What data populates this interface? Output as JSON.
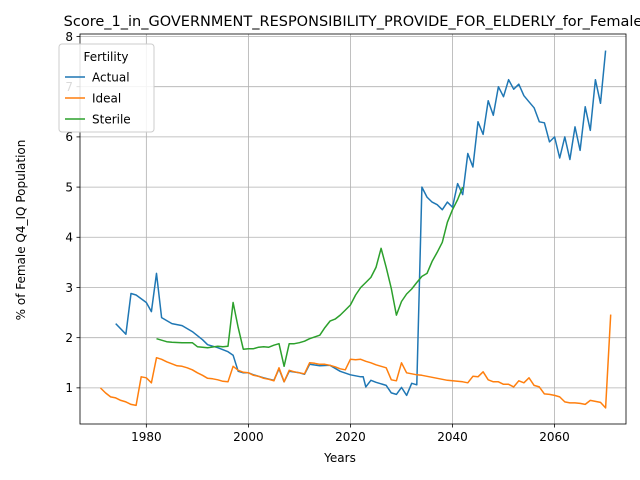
{
  "chart_data": {
    "type": "line",
    "title": "Score_1_in_GOVERNMENT_RESPONSIBILITY_PROVIDE_FOR_ELDERLY_for_Female",
    "xlabel": "Years",
    "ylabel": "% of Female Q4_IQ Population",
    "xlim": [
      1967,
      2074
    ],
    "ylim": [
      0.28,
      8.05
    ],
    "xticks": [
      1980,
      2000,
      2020,
      2040,
      2060
    ],
    "yticks": [
      1,
      2,
      3,
      4,
      5,
      6,
      7,
      8
    ],
    "grid": true,
    "legend": {
      "title": "Fertility",
      "placement": "upper left"
    },
    "series": [
      {
        "name": "Actual",
        "color": "#1f77b4",
        "points": [
          [
            1974,
            2.28
          ],
          [
            1976,
            2.07
          ],
          [
            1977,
            2.88
          ],
          [
            1978,
            2.85
          ],
          [
            1980,
            2.7
          ],
          [
            1981,
            2.52
          ],
          [
            1982,
            3.28
          ],
          [
            1983,
            2.4
          ],
          [
            1985,
            2.28
          ],
          [
            1987,
            2.24
          ],
          [
            1989,
            2.12
          ],
          [
            1991,
            1.96
          ],
          [
            1992,
            1.86
          ],
          [
            1994,
            1.8
          ],
          [
            1996,
            1.72
          ],
          [
            1997,
            1.65
          ],
          [
            1998,
            1.33
          ],
          [
            1999,
            1.3
          ],
          [
            2000,
            1.3
          ],
          [
            2001,
            1.26
          ],
          [
            2003,
            1.2
          ],
          [
            2005,
            1.15
          ],
          [
            2006,
            1.38
          ],
          [
            2007,
            1.12
          ],
          [
            2008,
            1.33
          ],
          [
            2010,
            1.3
          ],
          [
            2011,
            1.27
          ],
          [
            2012,
            1.47
          ],
          [
            2014,
            1.44
          ],
          [
            2016,
            1.45
          ],
          [
            2018,
            1.33
          ],
          [
            2020,
            1.26
          ],
          [
            2022,
            1.22
          ],
          [
            2022.5,
            1.22
          ],
          [
            2023,
            1.02
          ],
          [
            2024,
            1.15
          ],
          [
            2025,
            1.11
          ],
          [
            2027,
            1.05
          ],
          [
            2028,
            0.9
          ],
          [
            2029,
            0.87
          ],
          [
            2030,
            1.01
          ],
          [
            2031,
            0.85
          ],
          [
            2032,
            1.09
          ],
          [
            2033,
            1.06
          ],
          [
            2034,
            5.0
          ],
          [
            2035,
            4.8
          ],
          [
            2036,
            4.7
          ],
          [
            2037,
            4.65
          ],
          [
            2038,
            4.55
          ],
          [
            2039,
            4.7
          ],
          [
            2040,
            4.6
          ],
          [
            2041,
            5.07
          ],
          [
            2042,
            4.85
          ],
          [
            2043,
            5.67
          ],
          [
            2044,
            5.4
          ],
          [
            2045,
            6.3
          ],
          [
            2046,
            6.05
          ],
          [
            2047,
            6.72
          ],
          [
            2048,
            6.43
          ],
          [
            2049,
            7.0
          ],
          [
            2050,
            6.8
          ],
          [
            2051,
            7.14
          ],
          [
            2052,
            6.95
          ],
          [
            2053,
            7.05
          ],
          [
            2054,
            6.82
          ],
          [
            2055,
            6.7
          ],
          [
            2056,
            6.58
          ],
          [
            2057,
            6.3
          ],
          [
            2058,
            6.28
          ],
          [
            2059,
            5.9
          ],
          [
            2060,
            6.0
          ],
          [
            2061,
            5.58
          ],
          [
            2062,
            6.0
          ],
          [
            2063,
            5.55
          ],
          [
            2064,
            6.2
          ],
          [
            2065,
            5.73
          ],
          [
            2066,
            6.6
          ],
          [
            2067,
            6.13
          ],
          [
            2068,
            7.14
          ],
          [
            2069,
            6.67
          ],
          [
            2070,
            7.72
          ]
        ]
      },
      {
        "name": "Ideal",
        "color": "#ff7f0e",
        "points": [
          [
            1971,
            1.0
          ],
          [
            1972,
            0.9
          ],
          [
            1973,
            0.82
          ],
          [
            1974,
            0.8
          ],
          [
            1975,
            0.75
          ],
          [
            1976,
            0.72
          ],
          [
            1977,
            0.67
          ],
          [
            1978,
            0.65
          ],
          [
            1979,
            1.22
          ],
          [
            1980,
            1.2
          ],
          [
            1981,
            1.1
          ],
          [
            1982,
            1.6
          ],
          [
            1983,
            1.57
          ],
          [
            1984,
            1.52
          ],
          [
            1985,
            1.48
          ],
          [
            1986,
            1.44
          ],
          [
            1987,
            1.43
          ],
          [
            1988,
            1.4
          ],
          [
            1989,
            1.36
          ],
          [
            1990,
            1.3
          ],
          [
            1991,
            1.25
          ],
          [
            1992,
            1.19
          ],
          [
            1993,
            1.18
          ],
          [
            1994,
            1.16
          ],
          [
            1995,
            1.13
          ],
          [
            1996,
            1.12
          ],
          [
            1997,
            1.43
          ],
          [
            1998,
            1.35
          ],
          [
            1999,
            1.31
          ],
          [
            2000,
            1.3
          ],
          [
            2001,
            1.25
          ],
          [
            2002,
            1.23
          ],
          [
            2003,
            1.19
          ],
          [
            2004,
            1.17
          ],
          [
            2005,
            1.14
          ],
          [
            2006,
            1.4
          ],
          [
            2007,
            1.12
          ],
          [
            2008,
            1.35
          ],
          [
            2009,
            1.32
          ],
          [
            2010,
            1.3
          ],
          [
            2011,
            1.28
          ],
          [
            2012,
            1.5
          ],
          [
            2013,
            1.49
          ],
          [
            2014,
            1.47
          ],
          [
            2015,
            1.47
          ],
          [
            2016,
            1.45
          ],
          [
            2017,
            1.42
          ],
          [
            2018,
            1.38
          ],
          [
            2019,
            1.36
          ],
          [
            2020,
            1.57
          ],
          [
            2021,
            1.56
          ],
          [
            2022,
            1.57
          ],
          [
            2023,
            1.53
          ],
          [
            2024,
            1.5
          ],
          [
            2025,
            1.46
          ],
          [
            2026,
            1.43
          ],
          [
            2027,
            1.4
          ],
          [
            2028,
            1.16
          ],
          [
            2029,
            1.14
          ],
          [
            2030,
            1.5
          ],
          [
            2031,
            1.3
          ],
          [
            2032,
            1.28
          ],
          [
            2033,
            1.26
          ],
          [
            2034,
            1.25
          ],
          [
            2035,
            1.23
          ],
          [
            2036,
            1.21
          ],
          [
            2037,
            1.19
          ],
          [
            2038,
            1.17
          ],
          [
            2039,
            1.15
          ],
          [
            2040,
            1.14
          ],
          [
            2041,
            1.13
          ],
          [
            2042,
            1.12
          ],
          [
            2043,
            1.1
          ],
          [
            2044,
            1.23
          ],
          [
            2045,
            1.22
          ],
          [
            2046,
            1.32
          ],
          [
            2047,
            1.16
          ],
          [
            2048,
            1.12
          ],
          [
            2049,
            1.12
          ],
          [
            2050,
            1.07
          ],
          [
            2051,
            1.07
          ],
          [
            2052,
            1.02
          ],
          [
            2053,
            1.14
          ],
          [
            2054,
            1.1
          ],
          [
            2055,
            1.2
          ],
          [
            2056,
            1.05
          ],
          [
            2057,
            1.02
          ],
          [
            2058,
            0.88
          ],
          [
            2059,
            0.87
          ],
          [
            2060,
            0.85
          ],
          [
            2061,
            0.82
          ],
          [
            2062,
            0.72
          ],
          [
            2063,
            0.7
          ],
          [
            2064,
            0.7
          ],
          [
            2065,
            0.69
          ],
          [
            2066,
            0.67
          ],
          [
            2067,
            0.75
          ],
          [
            2068,
            0.73
          ],
          [
            2069,
            0.71
          ],
          [
            2070,
            0.6
          ],
          [
            2071,
            2.46
          ]
        ]
      },
      {
        "name": "Sterile",
        "color": "#2ca02c",
        "points": [
          [
            1982,
            1.98
          ],
          [
            1983,
            1.95
          ],
          [
            1984,
            1.92
          ],
          [
            1985,
            1.91
          ],
          [
            1987,
            1.9
          ],
          [
            1989,
            1.9
          ],
          [
            1990,
            1.82
          ],
          [
            1992,
            1.8
          ],
          [
            1994,
            1.83
          ],
          [
            1995,
            1.82
          ],
          [
            1996,
            1.83
          ],
          [
            1997,
            2.7
          ],
          [
            1998,
            2.2
          ],
          [
            1999,
            1.77
          ],
          [
            2000,
            1.78
          ],
          [
            2001,
            1.78
          ],
          [
            2002,
            1.81
          ],
          [
            2003,
            1.82
          ],
          [
            2004,
            1.81
          ],
          [
            2005,
            1.85
          ],
          [
            2006,
            1.88
          ],
          [
            2007,
            1.43
          ],
          [
            2008,
            1.88
          ],
          [
            2009,
            1.88
          ],
          [
            2010,
            1.9
          ],
          [
            2011,
            1.93
          ],
          [
            2012,
            1.98
          ],
          [
            2014,
            2.05
          ],
          [
            2015,
            2.2
          ],
          [
            2016,
            2.33
          ],
          [
            2017,
            2.37
          ],
          [
            2018,
            2.45
          ],
          [
            2019,
            2.55
          ],
          [
            2020,
            2.65
          ],
          [
            2021,
            2.85
          ],
          [
            2022,
            3.0
          ],
          [
            2023,
            3.1
          ],
          [
            2024,
            3.2
          ],
          [
            2025,
            3.4
          ],
          [
            2026,
            3.78
          ],
          [
            2027,
            3.4
          ],
          [
            2028,
            2.98
          ],
          [
            2029,
            2.45
          ],
          [
            2030,
            2.72
          ],
          [
            2031,
            2.87
          ],
          [
            2032,
            2.97
          ],
          [
            2033,
            3.1
          ],
          [
            2034,
            3.22
          ],
          [
            2035,
            3.28
          ],
          [
            2036,
            3.52
          ],
          [
            2037,
            3.7
          ],
          [
            2038,
            3.9
          ],
          [
            2039,
            4.3
          ],
          [
            2040,
            4.55
          ],
          [
            2041,
            4.75
          ],
          [
            2042,
            5.0
          ]
        ]
      }
    ]
  }
}
